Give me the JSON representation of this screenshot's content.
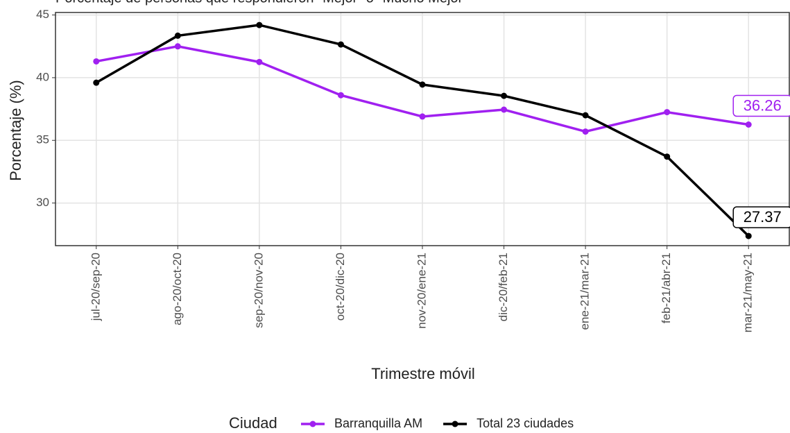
{
  "chart_data": {
    "type": "line",
    "title": "Porcentaje de personas que respondieron \"Mejor\" o \"Mucho Mejor\"",
    "x_label": "Trimestre móvil",
    "y_label": "Porcentaje (%)",
    "categories": [
      "jul-20/sep-20",
      "ago-20/oct-20",
      "sep-20/nov-20",
      "oct-20/dic-20",
      "nov-20/ene-21",
      "dic-20/feb-21",
      "ene-21/mar-21",
      "feb-21/abr-21",
      "mar-21/may-21"
    ],
    "series": [
      {
        "name": "Barranquilla AM",
        "color": "#a020f0",
        "values": [
          41.3,
          42.5,
          41.25,
          38.6,
          36.9,
          37.45,
          35.7,
          37.25,
          36.26
        ]
      },
      {
        "name": "Total 23 ciudades",
        "color": "#000000",
        "values": [
          39.6,
          43.35,
          44.2,
          42.65,
          39.45,
          38.55,
          37.0,
          33.7,
          27.37
        ]
      }
    ],
    "legend_title": "Ciudad",
    "legend": "bottom",
    "ylim": [
      26.6,
      45.2
    ],
    "yticks": [
      30,
      35,
      40,
      45
    ],
    "grid": true
  }
}
